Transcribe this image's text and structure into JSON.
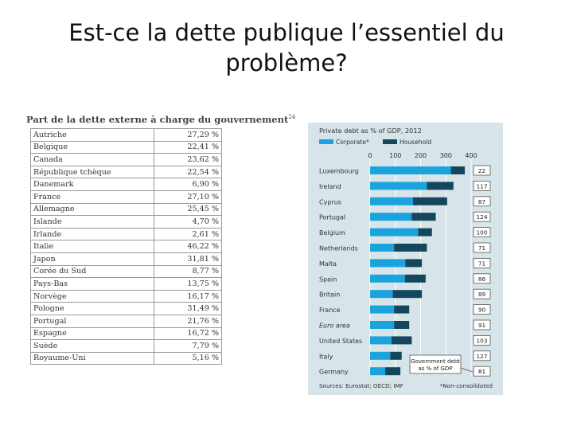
{
  "slide": {
    "title": "Est-ce la dette publique l’essentiel du problème?"
  },
  "table": {
    "caption": "Part de la dette externe à charge du gouvernement",
    "caption_note": "24",
    "rows": [
      {
        "country": "Autriche",
        "value": "27,29 %"
      },
      {
        "country": "Belgique",
        "value": "22,41 %"
      },
      {
        "country": "Canada",
        "value": "23,62 %"
      },
      {
        "country": "République tchèque",
        "value": "22,54 %"
      },
      {
        "country": "Danemark",
        "value": "6,90 %"
      },
      {
        "country": "France",
        "value": "27,10 %"
      },
      {
        "country": "Allemagne",
        "value": "25,45 %"
      },
      {
        "country": "Islande",
        "value": "4,70 %"
      },
      {
        "country": "Irlande",
        "value": "2,61 %"
      },
      {
        "country": "Italie",
        "value": "46,22 %"
      },
      {
        "country": "Japon",
        "value": "31,81 %"
      },
      {
        "country": "Corée du Sud",
        "value": "8,77 %"
      },
      {
        "country": "Pays-Bas",
        "value": "13,75 %"
      },
      {
        "country": "Norvège",
        "value": "16,17 %"
      },
      {
        "country": "Pologne",
        "value": "31,49 %"
      },
      {
        "country": "Portugal",
        "value": "21,76 %"
      },
      {
        "country": "Espagne",
        "value": "16,72 %"
      },
      {
        "country": "Suède",
        "value": "7,79 %"
      },
      {
        "country": "Royaume-Uni",
        "value": "5,16 %"
      }
    ]
  },
  "chart_data": {
    "type": "bar",
    "stacked": true,
    "orientation": "horizontal",
    "title": "Private debt as % of GDP, 2012",
    "xlim": [
      0,
      400
    ],
    "ticks": [
      "0",
      "100",
      "200",
      "300",
      "400"
    ],
    "categories": [
      "Luxembourg",
      "Ireland",
      "Cyprus",
      "Portugal",
      "Belgium",
      "Netherlands",
      "Malta",
      "Spain",
      "Britain",
      "France",
      "Euro area",
      "United States",
      "Italy",
      "Germany"
    ],
    "series": [
      {
        "name": "Corporate*",
        "color": "#1aa3dd",
        "values": [
          320,
          225,
          170,
          165,
          190,
          95,
          140,
          138,
          90,
          95,
          95,
          85,
          80,
          60
        ]
      },
      {
        "name": "Household",
        "color": "#14475e",
        "values": [
          55,
          105,
          135,
          95,
          55,
          130,
          65,
          82,
          115,
          60,
          60,
          80,
          45,
          60
        ]
      }
    ],
    "government_debt": {
      "label_line1": "Government debt",
      "label_line2": "as % of GDP",
      "values": [
        "22",
        "117",
        "87",
        "124",
        "100",
        "71",
        "71",
        "86",
        "89",
        "90",
        "91",
        "103",
        "127",
        "81"
      ]
    },
    "source": "Sources: Eurostat; OECD; IMF",
    "footnote": "*Non-consolidated",
    "grid": true
  }
}
